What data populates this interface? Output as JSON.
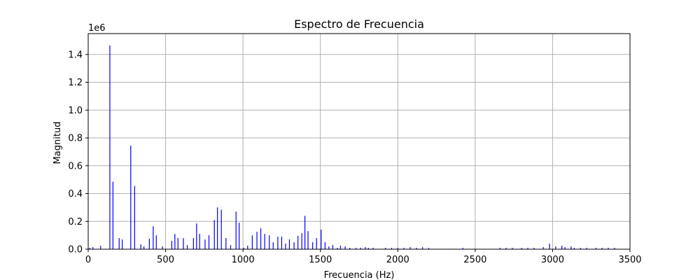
{
  "chart_data": {
    "type": "bar",
    "title": "Espectro de Frecuencia",
    "xlabel": "Frecuencia (Hz)",
    "ylabel": "Magnitud",
    "offset_label": "1e6",
    "xlim": [
      0,
      3500
    ],
    "ylim": [
      0,
      1.55
    ],
    "x_ticks": [
      0,
      500,
      1000,
      1500,
      2000,
      2500,
      3000,
      3500
    ],
    "x_tick_labels": [
      "0",
      "500",
      "1000",
      "1500",
      "2000",
      "2500",
      "3000",
      "3500"
    ],
    "y_ticks": [
      0,
      0.2,
      0.4,
      0.6,
      0.8,
      1.0,
      1.2,
      1.4
    ],
    "y_tick_labels": [
      "0.0",
      "0.2",
      "0.4",
      "0.6",
      "0.8",
      "1.0",
      "1.2",
      "1.4"
    ],
    "grid": true,
    "series": [
      {
        "color": "#0000ff",
        "x": [
          10,
          30,
          80,
          140,
          160,
          200,
          220,
          275,
          300,
          340,
          360,
          395,
          420,
          440,
          480,
          540,
          560,
          580,
          615,
          640,
          680,
          700,
          720,
          755,
          780,
          815,
          835,
          860,
          890,
          920,
          955,
          975,
          1005,
          1030,
          1060,
          1090,
          1115,
          1140,
          1170,
          1195,
          1225,
          1250,
          1275,
          1300,
          1330,
          1355,
          1380,
          1400,
          1420,
          1450,
          1475,
          1505,
          1530,
          1555,
          1580,
          1610,
          1630,
          1660,
          1690,
          1730,
          1760,
          1790,
          1810,
          1840,
          1920,
          1960,
          2000,
          2040,
          2080,
          2120,
          2160,
          2200,
          2420,
          2660,
          2700,
          2740,
          2800,
          2840,
          2880,
          2940,
          2980,
          3020,
          3060,
          3080,
          3120,
          3140,
          3180,
          3220,
          3280,
          3320,
          3360,
          3400
        ],
        "values": [
          0.01,
          0.015,
          0.025,
          1.465,
          0.485,
          0.08,
          0.07,
          0.745,
          0.455,
          0.035,
          0.02,
          0.075,
          0.165,
          0.1,
          0.02,
          0.06,
          0.11,
          0.08,
          0.08,
          0.03,
          0.08,
          0.185,
          0.11,
          0.07,
          0.1,
          0.21,
          0.3,
          0.285,
          0.08,
          0.03,
          0.27,
          0.19,
          0.01,
          0.025,
          0.1,
          0.125,
          0.15,
          0.11,
          0.1,
          0.05,
          0.09,
          0.09,
          0.04,
          0.07,
          0.05,
          0.095,
          0.115,
          0.24,
          0.13,
          0.05,
          0.08,
          0.14,
          0.05,
          0.02,
          0.03,
          0.01,
          0.025,
          0.02,
          0.01,
          0.01,
          0.01,
          0.015,
          0.01,
          0.01,
          0.01,
          0.01,
          0.01,
          0.01,
          0.015,
          0.01,
          0.015,
          0.01,
          0.01,
          0.01,
          0.01,
          0.01,
          0.01,
          0.01,
          0.01,
          0.015,
          0.04,
          0.02,
          0.025,
          0.015,
          0.02,
          0.01,
          0.01,
          0.01,
          0.01,
          0.01,
          0.01,
          0.01
        ]
      }
    ]
  }
}
